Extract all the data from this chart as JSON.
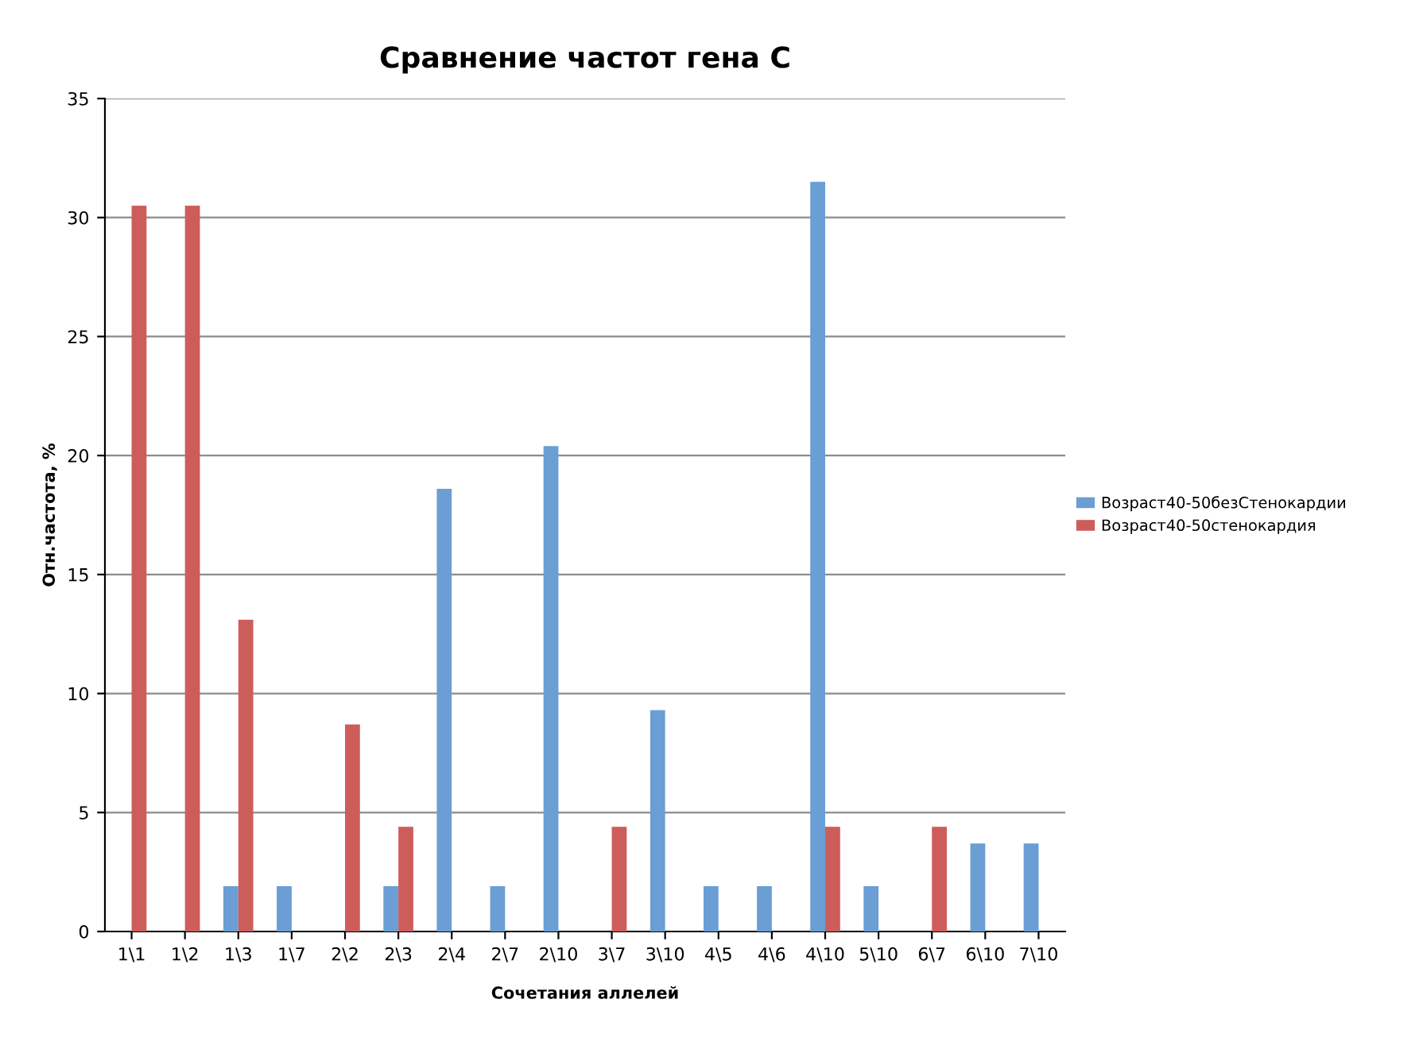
{
  "chart_data": {
    "type": "bar",
    "title": "Сравнение частот гена С",
    "xlabel": "Сочетания аллелей",
    "ylabel": "Отн.частота, %",
    "categories": [
      "1\\1",
      "1\\2",
      "1\\3",
      "1\\7",
      "2\\2",
      "2\\3",
      "2\\4",
      "2\\7",
      "2\\10",
      "3\\7",
      "3\\10",
      "4\\5",
      "4\\6",
      "4\\10",
      "5\\10",
      "6\\7",
      "6\\10",
      "7\\10"
    ],
    "series": [
      {
        "name": "Возраст40-50безСтенокардии",
        "color": "#6a9ed4",
        "values": [
          0,
          0,
          1.9,
          1.9,
          0,
          1.9,
          18.6,
          1.9,
          20.4,
          0,
          9.3,
          1.9,
          1.9,
          31.5,
          1.9,
          0,
          3.7,
          3.7
        ]
      },
      {
        "name": "Возраст40-50стенокардия",
        "color": "#cd5d5b",
        "values": [
          30.5,
          30.5,
          13.1,
          0,
          8.7,
          4.4,
          0,
          0,
          0,
          4.4,
          0,
          0,
          0,
          4.4,
          0,
          4.4,
          0,
          0
        ]
      }
    ],
    "ylim": [
      0,
      35
    ],
    "yticks": [
      0,
      5,
      10,
      15,
      20,
      25,
      30,
      35
    ],
    "grid": "y",
    "legend": "right"
  }
}
